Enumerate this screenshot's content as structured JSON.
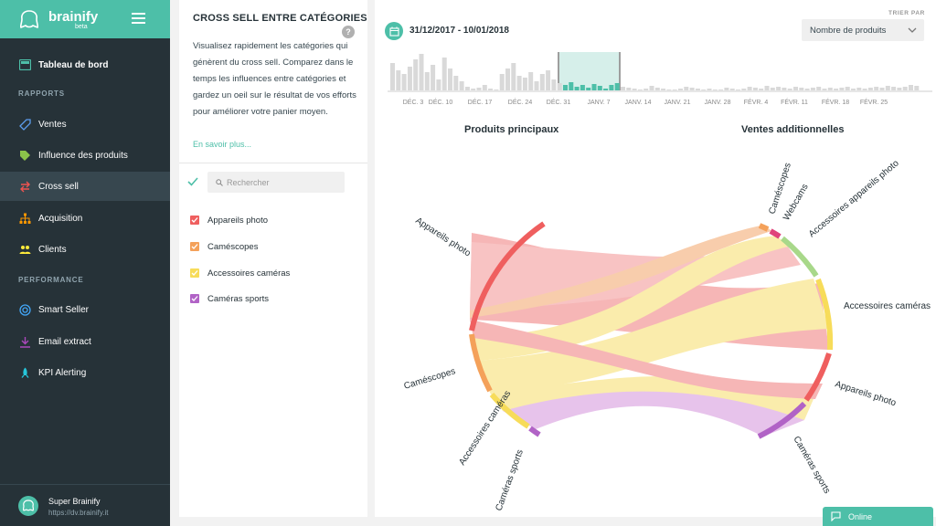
{
  "brand": {
    "name": "brainify",
    "tag": "beta"
  },
  "sidebar": {
    "top_item": {
      "label": "Tableau de bord",
      "icon": "dashboard-icon"
    },
    "sections": [
      {
        "label": "RAPPORTS",
        "items": [
          {
            "label": "Ventes",
            "icon": "sales-tag-icon",
            "color": "#5c9ded"
          },
          {
            "label": "Influence des produits",
            "icon": "tag-icon",
            "color": "#8bc34a"
          },
          {
            "label": "Cross sell",
            "icon": "swap-icon",
            "color": "#ef5350",
            "active": true
          },
          {
            "label": "Acquisition",
            "icon": "org-chart-icon",
            "color": "#ff9800"
          },
          {
            "label": "Clients",
            "icon": "users-icon",
            "color": "#ffeb3b"
          }
        ]
      },
      {
        "label": "PERFORMANCE",
        "items": [
          {
            "label": "Smart Seller",
            "icon": "target-icon",
            "color": "#42a5f5"
          },
          {
            "label": "Email extract",
            "icon": "download-icon",
            "color": "#ab47bc"
          },
          {
            "label": "KPI Alerting",
            "icon": "rocket-icon",
            "color": "#26c6da"
          }
        ]
      }
    ],
    "user": {
      "name": "Super Brainify",
      "url": "https://dv.brainify.it"
    }
  },
  "panel": {
    "title": "CROSS SELL ENTRE CATÉGORIES",
    "help": "?",
    "description": "Visualisez rapidement les catégories qui génèrent du cross sell. Comparez dans le temps les influences entre catégories et gardez un oeil sur le résultat de vos efforts pour améliorer votre panier moyen.",
    "more_link": "En savoir plus...",
    "search_placeholder": "Rechercher",
    "categories": [
      {
        "label": "Appareils photo",
        "color": "#ef5f5f"
      },
      {
        "label": "Caméscopes",
        "color": "#f4a15a"
      },
      {
        "label": "Accessoires caméras",
        "color": "#f7dc5a"
      },
      {
        "label": "Caméras sports",
        "color": "#b163c6"
      }
    ]
  },
  "main": {
    "date_range": "31/12/2017 - 10/01/2018",
    "sort_label": "TRIER PAR",
    "sort_value": "Nombre de produits",
    "timeline_ticks": [
      "DÉC. 3",
      "DÉC. 10",
      "DÉC. 17",
      "DÉC. 24",
      "DÉC. 31",
      "JANV. 7",
      "JANV. 14",
      "JANV. 21",
      "JANV. 28",
      "FÉVR. 4",
      "FÉVR. 11",
      "FÉVR. 18",
      "FÉVR. 25"
    ],
    "left_title": "Produits principaux",
    "right_title": "Ventes additionnelles",
    "left_arcs": [
      "Appareils photo",
      "Caméscopes",
      "Accessoires caméras",
      "Caméras sports"
    ],
    "right_arcs": [
      "Caméscopes",
      "Webcams",
      "Accessoires appareils photo",
      "Accessoires caméras",
      "Appareils photo",
      "Caméras sports"
    ]
  },
  "chat": {
    "label": "Online"
  }
}
